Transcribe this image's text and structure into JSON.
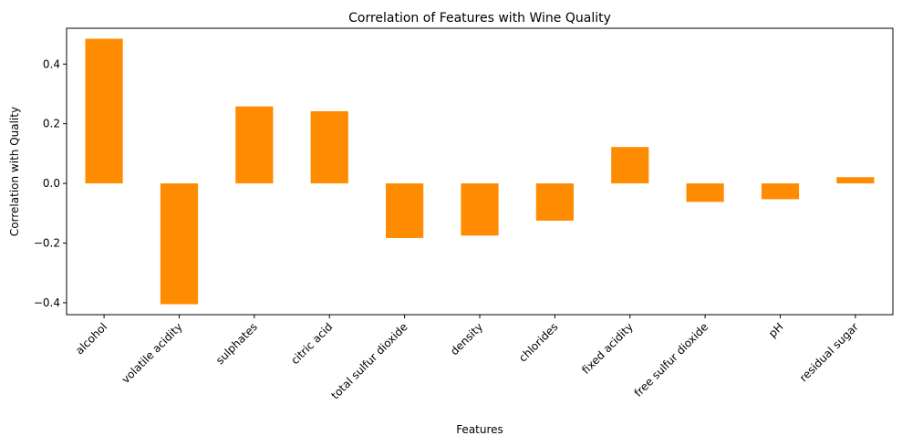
{
  "chart_data": {
    "type": "bar",
    "title": "Correlation of Features with Wine Quality",
    "xlabel": "Features",
    "ylabel": "Correlation with Quality",
    "categories": [
      "alcohol",
      "volatile acidity",
      "sulphates",
      "citric acid",
      "total sulfur dioxide",
      "density",
      "chlorides",
      "fixed acidity",
      "free sulfur dioxide",
      "pH",
      "residual sugar"
    ],
    "values": [
      0.485,
      -0.405,
      0.258,
      0.242,
      -0.183,
      -0.175,
      -0.125,
      0.122,
      -0.062,
      -0.053,
      0.021
    ],
    "ylim": [
      -0.44,
      0.52
    ],
    "yticks": [
      -0.4,
      -0.2,
      0.0,
      0.2,
      0.4
    ],
    "ytick_labels": [
      "−0.4",
      "−0.2",
      "0.0",
      "0.2",
      "0.4"
    ],
    "bar_color": "#ff8c00",
    "grid": false
  }
}
